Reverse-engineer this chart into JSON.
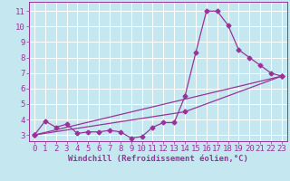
{
  "xlabel": "Windchill (Refroidissement éolien,°C)",
  "background_color": "#c5e8f0",
  "line_color": "#993399",
  "grid_color": "#ffffff",
  "xlim": [
    -0.5,
    23.5
  ],
  "ylim": [
    2.6,
    11.6
  ],
  "yticks": [
    3,
    4,
    5,
    6,
    7,
    8,
    9,
    10,
    11
  ],
  "xticks": [
    0,
    1,
    2,
    3,
    4,
    5,
    6,
    7,
    8,
    9,
    10,
    11,
    12,
    13,
    14,
    15,
    16,
    17,
    18,
    19,
    20,
    21,
    22,
    23
  ],
  "line1_x": [
    0,
    1,
    2,
    3,
    4,
    5,
    6,
    7,
    8,
    9,
    10,
    11,
    12,
    13,
    14,
    15,
    16,
    17,
    18,
    19,
    20,
    21,
    22,
    23
  ],
  "line1_y": [
    3.0,
    3.9,
    3.5,
    3.7,
    3.1,
    3.2,
    3.2,
    3.3,
    3.2,
    2.8,
    2.9,
    3.5,
    3.8,
    3.8,
    5.5,
    8.3,
    11.0,
    11.0,
    10.1,
    8.5,
    8.0,
    7.5,
    7.0,
    6.8
  ],
  "line2_x": [
    0,
    23
  ],
  "line2_y": [
    3.0,
    6.8
  ],
  "line3_x": [
    0,
    14,
    23
  ],
  "line3_y": [
    3.0,
    4.5,
    6.8
  ],
  "xlabel_fontsize": 6.5,
  "tick_fontsize": 6.5,
  "marker_size": 2.5,
  "line_width": 0.9
}
